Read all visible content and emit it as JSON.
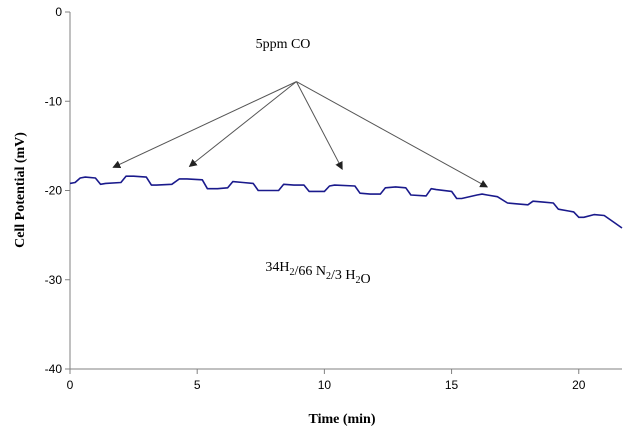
{
  "chart_data": {
    "type": "line",
    "title": "",
    "xlabel": "Time (min)",
    "ylabel": "Cell Potential (mV)",
    "xlim": [
      0,
      21.7
    ],
    "ylim": [
      -40,
      0
    ],
    "x_ticks": [
      0,
      5,
      10,
      15,
      20
    ],
    "y_ticks": [
      0,
      -10,
      -20,
      -30,
      -40
    ],
    "x_tick_labels": [
      "0",
      "5",
      "10",
      "15",
      "20"
    ],
    "y_tick_labels": [
      "0",
      "-10",
      "-20",
      "-30",
      "-40"
    ],
    "grid": false,
    "colors": {
      "series": "#1a1a8c",
      "axis": "#808080",
      "arrow": "#555555"
    },
    "series": [
      {
        "x": [
          0,
          0.2,
          0.4,
          0.6,
          1.0,
          1.2,
          1.4,
          2.0,
          2.2,
          2.5,
          3.0,
          3.2,
          3.4,
          4.0,
          4.3,
          4.6,
          5.2,
          5.4,
          5.8,
          6.2,
          6.4,
          6.8,
          7.2,
          7.4,
          7.8,
          8.2,
          8.4,
          8.8,
          9.2,
          9.4,
          10.0,
          10.2,
          10.4,
          11.2,
          11.4,
          11.8,
          12.2,
          12.4,
          12.8,
          13.2,
          13.4,
          14.0,
          14.2,
          14.4,
          15.0,
          15.2,
          15.4,
          16.0,
          16.2,
          16.4,
          16.8,
          17.2,
          17.6,
          18.0,
          18.2,
          18.6,
          19.0,
          19.2,
          19.6,
          19.8,
          20.0,
          20.2,
          20.6,
          21.0,
          21.4,
          21.7
        ],
        "y": [
          -19.2,
          -19.1,
          -18.6,
          -18.5,
          -18.6,
          -19.3,
          -19.2,
          -19.1,
          -18.4,
          -18.4,
          -18.5,
          -19.4,
          -19.4,
          -19.3,
          -18.7,
          -18.7,
          -18.8,
          -19.8,
          -19.8,
          -19.7,
          -19.0,
          -19.1,
          -19.2,
          -20.0,
          -20.0,
          -20.0,
          -19.3,
          -19.4,
          -19.4,
          -20.1,
          -20.1,
          -19.5,
          -19.4,
          -19.5,
          -20.3,
          -20.4,
          -20.4,
          -19.7,
          -19.6,
          -19.7,
          -20.5,
          -20.6,
          -19.8,
          -19.9,
          -20.1,
          -20.9,
          -20.9,
          -20.5,
          -20.4,
          -20.5,
          -20.7,
          -21.4,
          -21.5,
          -21.6,
          -21.2,
          -21.3,
          -21.4,
          -22.1,
          -22.3,
          -22.4,
          -23.0,
          -23.0,
          -22.7,
          -22.8,
          -23.6,
          -24.2
        ]
      }
    ],
    "annotations": {
      "co_label": "5ppm CO",
      "gas_mix": [
        {
          "text": "34H",
          "sub": "2"
        },
        {
          "text": "/66 N",
          "sub": "2"
        },
        {
          "text": "/3 H",
          "sub": "2"
        },
        {
          "text": "O",
          "sub": ""
        }
      ],
      "arrow_origin": {
        "x": 8.9,
        "y": -7.8
      },
      "arrow_targets": [
        {
          "x": 1.7,
          "y": -17.4
        },
        {
          "x": 4.7,
          "y": -17.3
        },
        {
          "x": 10.7,
          "y": -17.6
        },
        {
          "x": 16.4,
          "y": -19.6
        }
      ]
    }
  }
}
